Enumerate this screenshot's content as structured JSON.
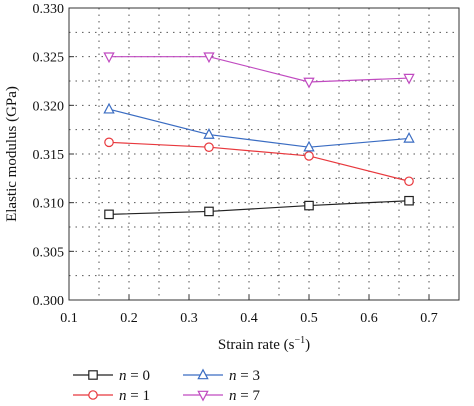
{
  "chart_data": {
    "type": "line",
    "title": "",
    "xlabel": "Strain rate (s",
    "xlabel_sup": "−1",
    "xlabel_end": ")",
    "ylabel": "Elastic modulus (GPa)",
    "xlim": [
      0.1,
      0.75
    ],
    "ylim": [
      0.3,
      0.33
    ],
    "x_ticks": [
      "0.1",
      "0.2",
      "0.3",
      "0.4",
      "0.5",
      "0.6",
      "0.7"
    ],
    "y_ticks": [
      "0.300",
      "0.305",
      "0.310",
      "0.315",
      "0.320",
      "0.325",
      "0.330"
    ],
    "grid": "dotted",
    "legend_position": "bottom",
    "x": [
      0.1667,
      0.3333,
      0.5,
      0.6667
    ],
    "series": [
      {
        "name": "n = 0",
        "var": "n",
        "eq": " = 0",
        "color": "#222222",
        "marker": "square",
        "values": [
          0.3088,
          0.3091,
          0.3097,
          0.3102
        ]
      },
      {
        "name": "n = 1",
        "var": "n",
        "eq": " = 1",
        "color": "#e8383d",
        "marker": "circle",
        "values": [
          0.3162,
          0.3157,
          0.3148,
          0.3122
        ]
      },
      {
        "name": "n = 3",
        "var": "n",
        "eq": " = 3",
        "color": "#3a6cc2",
        "marker": "triangle-up",
        "values": [
          0.3196,
          0.317,
          0.3157,
          0.3166
        ]
      },
      {
        "name": "n = 7",
        "var": "n",
        "eq": " = 7",
        "color": "#c04ac0",
        "marker": "triangle-down",
        "values": [
          0.325,
          0.325,
          0.3224,
          0.3228
        ]
      }
    ]
  }
}
